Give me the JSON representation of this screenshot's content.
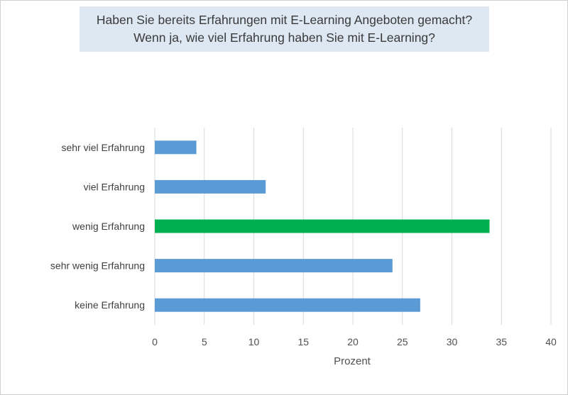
{
  "chart_data": {
    "type": "bar",
    "orientation": "horizontal",
    "title": [
      "Haben Sie bereits Erfahrungen mit E-Learning Angeboten gemacht?",
      "Wenn ja, wie viel Erfahrung haben Sie mit E-Learning?"
    ],
    "categories": [
      "sehr viel Erfahrung",
      "viel Erfahrung",
      "wenig Erfahrung",
      "sehr wenig Erfahrung",
      "keine Erfahrung"
    ],
    "values": [
      4.2,
      11.2,
      33.8,
      24.0,
      26.8
    ],
    "bar_colors": [
      "#5b9bd5",
      "#5b9bd5",
      "#00b050",
      "#5b9bd5",
      "#5b9bd5"
    ],
    "xlabel": "Prozent",
    "ylabel": "",
    "xlim": [
      0,
      40
    ],
    "xticks": [
      0,
      5,
      10,
      15,
      20,
      25,
      30,
      35,
      40
    ],
    "grid": true,
    "legend": "none"
  }
}
